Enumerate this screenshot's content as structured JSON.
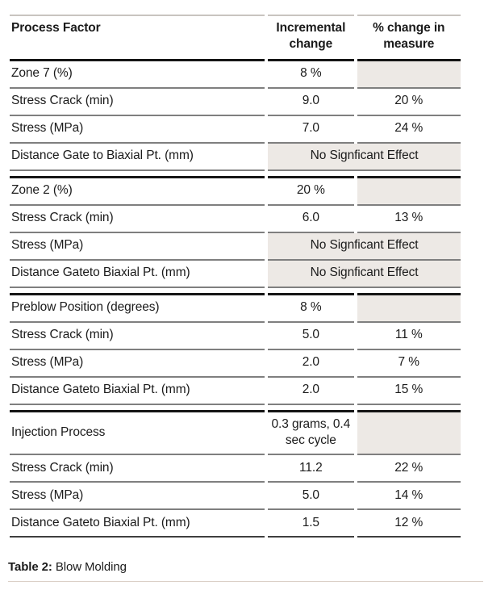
{
  "colors": {
    "shaded_cell": "#ede9e5",
    "row_rule": "#7f7f7f",
    "heavy_rule": "#151515",
    "top_rule": "#c9c4c0",
    "caption_rule": "#dbd0c7"
  },
  "table": {
    "columns": [
      {
        "label": "Process Factor"
      },
      {
        "label": "Incremental change"
      },
      {
        "label": "% change in measure"
      }
    ],
    "no_effect_text": "No Signficant Effect",
    "sections": [
      {
        "factor": "Zone 7 (%)",
        "change": "8 %",
        "rows": [
          {
            "factor": "Stress Crack (min)",
            "change": "9.0",
            "percent": "20 %"
          },
          {
            "factor": "Stress (MPa)",
            "change": "7.0",
            "percent": "24 %"
          },
          {
            "factor": "Distance Gate to Biaxial Pt. (mm)",
            "no_effect": true
          }
        ]
      },
      {
        "factor": "Zone 2 (%)",
        "change": "20 %",
        "rows": [
          {
            "factor": "Stress Crack (min)",
            "change": "6.0",
            "percent": "13 %"
          },
          {
            "factor": "Stress (MPa)",
            "no_effect": true
          },
          {
            "factor": "Distance Gateto Biaxial Pt. (mm)",
            "no_effect": true
          }
        ]
      },
      {
        "factor": "Preblow Position (degrees)",
        "change": "8 %",
        "rows": [
          {
            "factor": "Stress Crack (min)",
            "change": "5.0",
            "percent": "11 %"
          },
          {
            "factor": "Stress (MPa)",
            "change": "2.0",
            "percent": "7 %"
          },
          {
            "factor": "Distance Gateto Biaxial Pt. (mm)",
            "change": "2.0",
            "percent": "15 %"
          }
        ]
      },
      {
        "factor": "Injection Process",
        "change": "0.3 grams, 0.4 sec cycle",
        "rows": [
          {
            "factor": "Stress Crack (min)",
            "change": "11.2",
            "percent": "22 %"
          },
          {
            "factor": "Stress (MPa)",
            "change": "5.0",
            "percent": "14 %"
          },
          {
            "factor": "Distance Gateto Biaxial Pt. (mm)",
            "change": "1.5",
            "percent": "12 %"
          }
        ]
      }
    ]
  },
  "caption": {
    "label": "Table 2:",
    "text": " Blow Molding"
  }
}
